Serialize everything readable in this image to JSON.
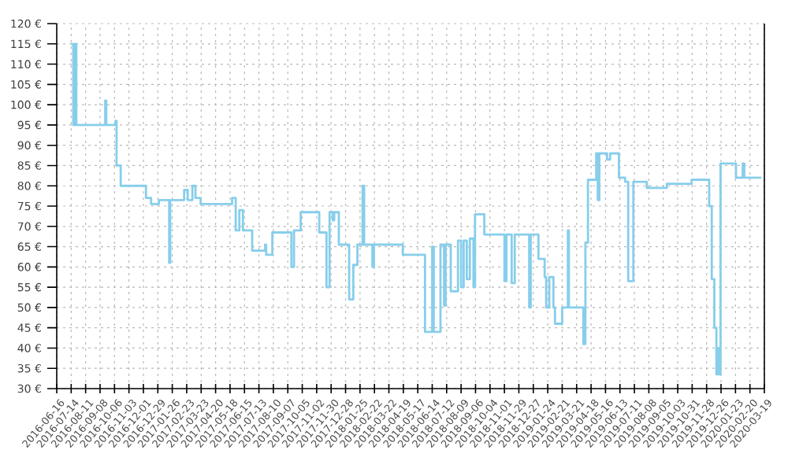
{
  "chart_data": {
    "type": "step",
    "color": "#87ceeb",
    "x": [
      "2016-07-14",
      "2016-07-18",
      "2016-07-21",
      "2016-07-24",
      "2016-09-18",
      "2016-09-20",
      "2016-10-08",
      "2016-10-10",
      "2016-10-18",
      "2016-12-06",
      "2016-12-16",
      "2016-12-31",
      "2017-01-20",
      "2017-01-22",
      "2017-02-18",
      "2017-02-25",
      "2017-03-06",
      "2017-03-12",
      "2017-03-22",
      "2017-05-22",
      "2017-05-29",
      "2017-06-05",
      "2017-06-12",
      "2017-06-30",
      "2017-07-25",
      "2017-07-27",
      "2017-08-08",
      "2017-09-14",
      "2017-09-19",
      "2017-10-02",
      "2017-11-07",
      "2017-11-21",
      "2017-11-27",
      "2017-12-03",
      "2017-12-06",
      "2017-12-15",
      "2018-01-04",
      "2018-01-12",
      "2018-01-20",
      "2018-01-30",
      "2018-02-02",
      "2018-02-18",
      "2018-02-21",
      "2018-04-18",
      "2018-05-31",
      "2018-06-14",
      "2018-06-17",
      "2018-06-30",
      "2018-07-07",
      "2018-07-10",
      "2018-07-20",
      "2018-08-03",
      "2018-08-09",
      "2018-08-14",
      "2018-08-20",
      "2018-08-26",
      "2018-09-02",
      "2018-09-05",
      "2018-09-23",
      "2018-11-01",
      "2018-11-05",
      "2018-11-15",
      "2018-11-21",
      "2018-12-19",
      "2018-12-22",
      "2019-01-06",
      "2019-01-18",
      "2019-01-21",
      "2019-01-27",
      "2019-02-04",
      "2019-02-07",
      "2019-02-21",
      "2019-03-04",
      "2019-03-06",
      "2019-04-03",
      "2019-04-07",
      "2019-04-12",
      "2019-04-28",
      "2019-05-01",
      "2019-05-04",
      "2019-05-19",
      "2019-05-25",
      "2019-06-11",
      "2019-06-23",
      "2019-06-29",
      "2019-07-09",
      "2019-08-04",
      "2019-09-12",
      "2019-10-30",
      "2019-12-03",
      "2019-12-08",
      "2019-12-13",
      "2019-12-17",
      "2019-12-20",
      "2019-12-23",
      "2019-12-25",
      "2020-01-24",
      "2020-02-06",
      "2020-02-09",
      "2020-03-13"
    ],
    "values": [
      115,
      95,
      115,
      95,
      101,
      95,
      96,
      85,
      80,
      77,
      75.5,
      76.5,
      61,
      76.5,
      79,
      76.5,
      80,
      77,
      75.5,
      77,
      69,
      74,
      69,
      64,
      65.5,
      63,
      68.5,
      60,
      69,
      73.5,
      68.5,
      55,
      73.5,
      71.5,
      73.5,
      65.5,
      52,
      60.5,
      65.5,
      80,
      65.5,
      60,
      65.5,
      63,
      44,
      65,
      44,
      65.5,
      50.5,
      65.5,
      54,
      66.5,
      55,
      66.5,
      57,
      67,
      55,
      73,
      68,
      56.5,
      68,
      56,
      68,
      50,
      68,
      62,
      57.5,
      50,
      57.5,
      50,
      46,
      50,
      69,
      50,
      41,
      66,
      81.5,
      88,
      76.5,
      88,
      86.5,
      88,
      82,
      81,
      56.5,
      81,
      79.5,
      80.5,
      81.5,
      75,
      57,
      45,
      33.5,
      40,
      33.5,
      85.5,
      82,
      85.5,
      82,
      82
    ],
    "xlim": [
      "2016-06-16",
      "2020-03-19"
    ],
    "xticks": [
      "2016-06-16",
      "2016-07-14",
      "2016-08-11",
      "2016-09-08",
      "2016-10-06",
      "2016-11-03",
      "2016-12-01",
      "2016-12-29",
      "2017-01-26",
      "2017-02-23",
      "2017-03-23",
      "2017-04-20",
      "2017-05-18",
      "2017-06-15",
      "2017-07-13",
      "2017-08-10",
      "2017-09-07",
      "2017-10-05",
      "2017-11-02",
      "2017-11-30",
      "2017-12-28",
      "2018-01-25",
      "2018-02-22",
      "2018-03-22",
      "2018-04-19",
      "2018-05-17",
      "2018-06-14",
      "2018-07-12",
      "2018-08-09",
      "2018-09-06",
      "2018-10-04",
      "2018-11-01",
      "2018-11-29",
      "2018-12-27",
      "2019-01-24",
      "2019-02-21",
      "2019-03-21",
      "2019-04-18",
      "2019-05-16",
      "2019-06-13",
      "2019-07-11",
      "2019-08-08",
      "2019-09-05",
      "2019-10-03",
      "2019-10-31",
      "2019-11-28",
      "2019-12-26",
      "2020-01-23",
      "2020-02-20",
      "2020-03-19"
    ],
    "ylim": [
      30,
      120
    ],
    "yticks": [
      {
        "value": 30,
        "label": "30 €"
      },
      {
        "value": 35,
        "label": "35 €"
      },
      {
        "value": 40,
        "label": "40 €"
      },
      {
        "value": 45,
        "label": "45 €"
      },
      {
        "value": 50,
        "label": "50 €"
      },
      {
        "value": 55,
        "label": "55 €"
      },
      {
        "value": 60,
        "label": "60 €"
      },
      {
        "value": 65,
        "label": "65 €"
      },
      {
        "value": 70,
        "label": "70 €"
      },
      {
        "value": 75,
        "label": "75 €"
      },
      {
        "value": 80,
        "label": "80 €"
      },
      {
        "value": 85,
        "label": "85 €"
      },
      {
        "value": 90,
        "label": "90 €"
      },
      {
        "value": 95,
        "label": "95 €"
      },
      {
        "value": 100,
        "label": "100 €"
      },
      {
        "value": 105,
        "label": "105 €"
      },
      {
        "value": 110,
        "label": "110 €"
      },
      {
        "value": 115,
        "label": "115 €"
      },
      {
        "value": 120,
        "label": "120 €"
      }
    ],
    "grid": true
  }
}
